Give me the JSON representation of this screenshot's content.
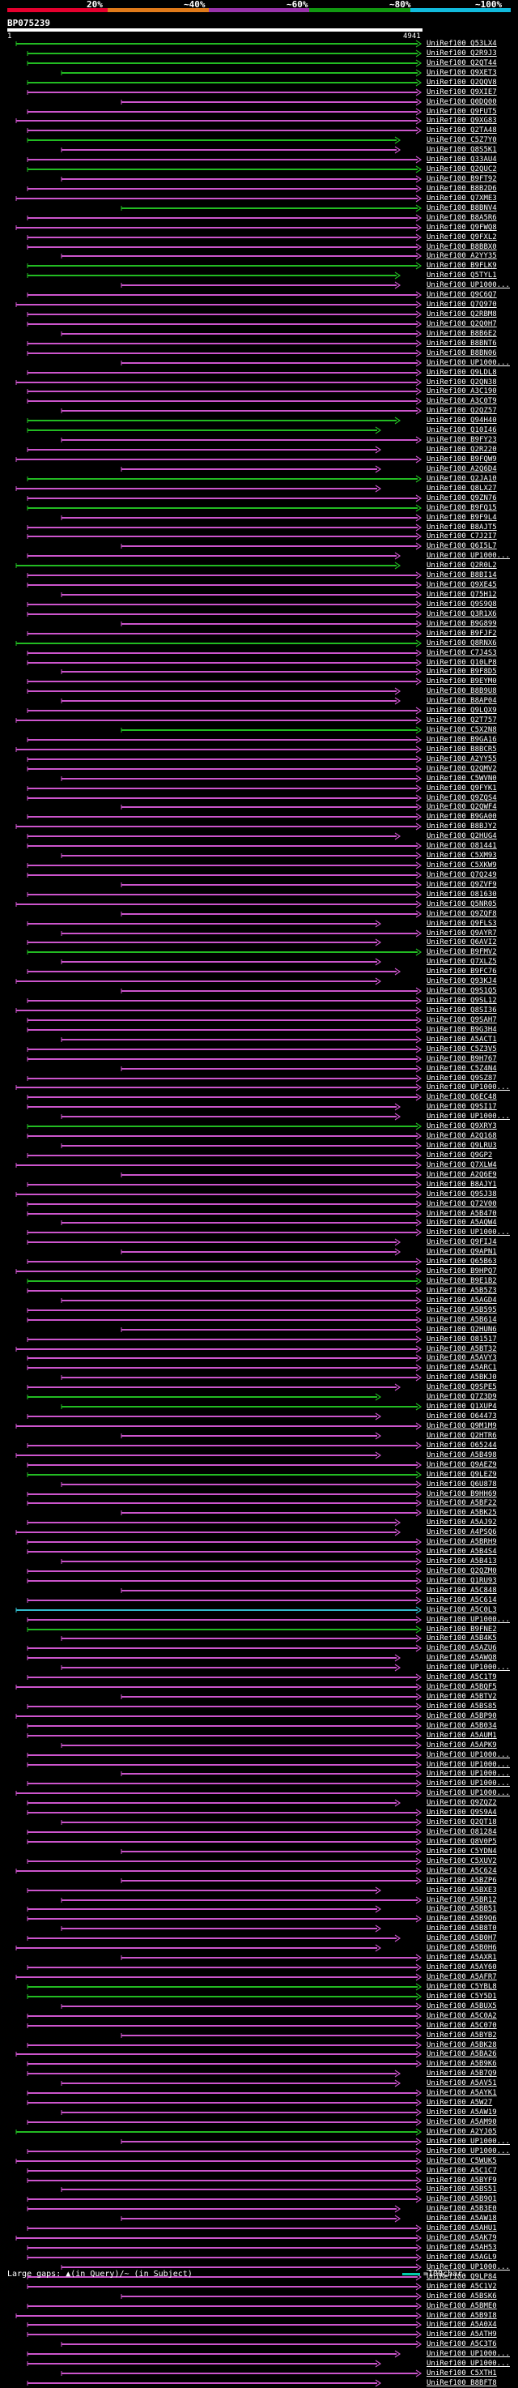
{
  "query_id": "BP075239",
  "query_start": "1",
  "query_end": "4941",
  "legend": [
    {
      "label": "20%",
      "color": "#e6002e"
    },
    {
      "label": "~40%",
      "color": "#e07a1a"
    },
    {
      "label": "~60%",
      "color": "#9933aa"
    },
    {
      "label": "~80%",
      "color": "#119911"
    },
    {
      "label": "~100%",
      "color": "#11bbdd"
    }
  ],
  "footer": {
    "gaps_text": "Large gaps: ▲(in Query)/~ (in Subject)",
    "scale_text": "=100char."
  },
  "colors": {
    "magenta": "#cc55cc",
    "green": "#22bb22",
    "cyan": "#33bbcc",
    "background": "#000000"
  },
  "hits": [
    {
      "id": "UniRef100_Q53LX4",
      "c": "green"
    },
    {
      "id": "UniRef100_Q2R9J3",
      "c": "green"
    },
    {
      "id": "UniRef100_Q2QT44",
      "c": "green"
    },
    {
      "id": "UniRef100_Q9XET3",
      "c": "green"
    },
    {
      "id": "UniRef100_Q2QQV8",
      "c": "green"
    },
    {
      "id": "UniRef100_Q9XIE7",
      "c": "magenta"
    },
    {
      "id": "UniRef100_Q0DQ00",
      "c": "magenta"
    },
    {
      "id": "UniRef100_Q9FUT5",
      "c": "magenta"
    },
    {
      "id": "UniRef100_Q9XG83",
      "c": "magenta"
    },
    {
      "id": "UniRef100_Q2TA48",
      "c": "magenta"
    },
    {
      "id": "UniRef100_C5Z7Y0",
      "c": "green"
    },
    {
      "id": "UniRef100_Q8S5K1",
      "c": "magenta"
    },
    {
      "id": "UniRef100_Q33AU4",
      "c": "magenta"
    },
    {
      "id": "UniRef100_Q2QUC2",
      "c": "green"
    },
    {
      "id": "UniRef100_B9FT92",
      "c": "magenta"
    },
    {
      "id": "UniRef100_B8B2D6",
      "c": "magenta"
    },
    {
      "id": "UniRef100_Q7XME3",
      "c": "magenta"
    },
    {
      "id": "UniRef100_B8BNV4",
      "c": "green"
    },
    {
      "id": "UniRef100_B8A5R6",
      "c": "magenta"
    },
    {
      "id": "UniRef100_Q9FWQ8",
      "c": "magenta"
    },
    {
      "id": "UniRef100_Q9FXL2",
      "c": "magenta"
    },
    {
      "id": "UniRef100_B8BBX0",
      "c": "magenta"
    },
    {
      "id": "UniRef100_A2YY35",
      "c": "magenta"
    },
    {
      "id": "UniRef100_B9FLK9",
      "c": "green"
    },
    {
      "id": "UniRef100_Q5TYL1",
      "c": "green"
    },
    {
      "id": "UniRef100_UP1000...",
      "c": "magenta"
    },
    {
      "id": "UniRef100_Q9C6Q7",
      "c": "magenta"
    },
    {
      "id": "UniRef100_Q7Q970",
      "c": "magenta"
    },
    {
      "id": "UniRef100_Q2RBM8",
      "c": "magenta"
    },
    {
      "id": "UniRef100_Q2Q0H7",
      "c": "magenta"
    },
    {
      "id": "UniRef100_B8B6E2",
      "c": "magenta"
    },
    {
      "id": "UniRef100_B8BNT6",
      "c": "magenta"
    },
    {
      "id": "UniRef100_B8BN06",
      "c": "magenta"
    },
    {
      "id": "UniRef100_UP1000...",
      "c": "magenta"
    },
    {
      "id": "UniRef100_Q9LDL8",
      "c": "magenta"
    },
    {
      "id": "UniRef100_Q2QN38",
      "c": "magenta"
    },
    {
      "id": "UniRef100_A3C190",
      "c": "magenta"
    },
    {
      "id": "UniRef100_A3C0T9",
      "c": "magenta"
    },
    {
      "id": "UniRef100_Q2QZ57",
      "c": "magenta"
    },
    {
      "id": "UniRef100_Q94H40",
      "c": "green"
    },
    {
      "id": "UniRef100_Q10I46",
      "c": "green"
    },
    {
      "id": "UniRef100_B9FY23",
      "c": "magenta"
    },
    {
      "id": "UniRef100_Q2R220",
      "c": "magenta"
    },
    {
      "id": "UniRef100_B9FQW9",
      "c": "magenta"
    },
    {
      "id": "UniRef100_A2Q6D4",
      "c": "magenta"
    },
    {
      "id": "UniRef100_Q2JA10",
      "c": "green"
    },
    {
      "id": "UniRef100_Q8LX27",
      "c": "magenta"
    },
    {
      "id": "UniRef100_Q9ZN76",
      "c": "magenta"
    },
    {
      "id": "UniRef100_B9FQ15",
      "c": "green"
    },
    {
      "id": "UniRef100_B9F9L4",
      "c": "magenta"
    },
    {
      "id": "UniRef100_B8AJT5",
      "c": "magenta"
    },
    {
      "id": "UniRef100_C7J2I7",
      "c": "magenta"
    },
    {
      "id": "UniRef100_Q6I5L7",
      "c": "magenta"
    },
    {
      "id": "UniRef100_UP1000...",
      "c": "magenta"
    },
    {
      "id": "UniRef100_Q2R0L2",
      "c": "green"
    },
    {
      "id": "UniRef100_B8BI14",
      "c": "magenta"
    },
    {
      "id": "UniRef100_Q9XE45",
      "c": "magenta"
    },
    {
      "id": "UniRef100_Q75H12",
      "c": "magenta"
    },
    {
      "id": "UniRef100_Q9S9Q8",
      "c": "magenta"
    },
    {
      "id": "UniRef100_Q3R1X6",
      "c": "magenta"
    },
    {
      "id": "UniRef100_B9G899",
      "c": "magenta"
    },
    {
      "id": "UniRef100_B9FJF2",
      "c": "magenta"
    },
    {
      "id": "UniRef100_Q8RNX6",
      "c": "green"
    },
    {
      "id": "UniRef100_C7J4S3",
      "c": "magenta"
    },
    {
      "id": "UniRef100_Q10LP8",
      "c": "magenta"
    },
    {
      "id": "UniRef100_B9F8D5",
      "c": "magenta"
    },
    {
      "id": "UniRef100_B9EYM0",
      "c": "magenta"
    },
    {
      "id": "UniRef100_B8B9U8",
      "c": "magenta"
    },
    {
      "id": "UniRef100_B8AP04",
      "c": "magenta"
    },
    {
      "id": "UniRef100_Q9LQX9",
      "c": "magenta"
    },
    {
      "id": "UniRef100_Q2T757",
      "c": "magenta"
    },
    {
      "id": "UniRef100_C5X2N8",
      "c": "green"
    },
    {
      "id": "UniRef100_B9GA16",
      "c": "magenta"
    },
    {
      "id": "UniRef100_B8BCR5",
      "c": "magenta"
    },
    {
      "id": "UniRef100_A2YY55",
      "c": "magenta"
    },
    {
      "id": "UniRef100_Q2QMV2",
      "c": "magenta"
    },
    {
      "id": "UniRef100_C5WVN0",
      "c": "magenta"
    },
    {
      "id": "UniRef100_Q9FYK1",
      "c": "magenta"
    },
    {
      "id": "UniRef100_Q9ZQS4",
      "c": "magenta"
    },
    {
      "id": "UniRef100_Q2QWF4",
      "c": "magenta"
    },
    {
      "id": "UniRef100_B9GA00",
      "c": "magenta"
    },
    {
      "id": "UniRef100_B8BJY2",
      "c": "magenta"
    },
    {
      "id": "UniRef100_Q2HUG4",
      "c": "magenta"
    },
    {
      "id": "UniRef100_O81441",
      "c": "magenta"
    },
    {
      "id": "UniRef100_C5XM93",
      "c": "magenta"
    },
    {
      "id": "UniRef100_C5XKW9",
      "c": "magenta"
    },
    {
      "id": "UniRef100_Q7Q249",
      "c": "magenta"
    },
    {
      "id": "UniRef100_Q9ZVF9",
      "c": "magenta"
    },
    {
      "id": "UniRef100_O81630",
      "c": "magenta"
    },
    {
      "id": "UniRef100_Q5NR05",
      "c": "magenta"
    },
    {
      "id": "UniRef100_Q9ZQF8",
      "c": "magenta"
    },
    {
      "id": "UniRef100_Q9FLS3",
      "c": "magenta"
    },
    {
      "id": "UniRef100_Q9AYR7",
      "c": "magenta"
    },
    {
      "id": "UniRef100_Q6AVI2",
      "c": "magenta"
    },
    {
      "id": "UniRef100_B9FMV2",
      "c": "green"
    },
    {
      "id": "UniRef100_Q7XLZ5",
      "c": "magenta"
    },
    {
      "id": "UniRef100_B9FC76",
      "c": "magenta"
    },
    {
      "id": "UniRef100_Q93KJ4",
      "c": "magenta"
    },
    {
      "id": "UniRef100_Q9S1Q5",
      "c": "magenta"
    },
    {
      "id": "UniRef100_Q9SL12",
      "c": "magenta"
    },
    {
      "id": "UniRef100_Q8SI36",
      "c": "magenta"
    },
    {
      "id": "UniRef100_Q9SAH7",
      "c": "magenta"
    },
    {
      "id": "UniRef100_B9G3H4",
      "c": "magenta"
    },
    {
      "id": "UniRef100_A5ACT1",
      "c": "magenta"
    },
    {
      "id": "UniRef100_C5Z3V5",
      "c": "magenta"
    },
    {
      "id": "UniRef100_B9H767",
      "c": "magenta"
    },
    {
      "id": "UniRef100_C5Z4N4",
      "c": "magenta"
    },
    {
      "id": "UniRef100_Q9SZ87",
      "c": "magenta"
    },
    {
      "id": "UniRef100_UP1000...",
      "c": "magenta"
    },
    {
      "id": "UniRef100_Q6EC48",
      "c": "magenta"
    },
    {
      "id": "UniRef100_Q9SI17",
      "c": "magenta"
    },
    {
      "id": "UniRef100_UP1000...",
      "c": "magenta"
    },
    {
      "id": "UniRef100_Q9XRY3",
      "c": "green"
    },
    {
      "id": "UniRef100_A2Q168",
      "c": "magenta"
    },
    {
      "id": "UniRef100_Q9LRU3",
      "c": "magenta"
    },
    {
      "id": "UniRef100_Q9GP2",
      "c": "magenta"
    },
    {
      "id": "UniRef100_Q7XLW4",
      "c": "magenta"
    },
    {
      "id": "UniRef100_A2Q6E9",
      "c": "magenta"
    },
    {
      "id": "UniRef100_B8AJY1",
      "c": "magenta"
    },
    {
      "id": "UniRef100_Q9SJ38",
      "c": "magenta"
    },
    {
      "id": "UniRef100_Q72V00",
      "c": "magenta"
    },
    {
      "id": "UniRef100_A5B470",
      "c": "magenta"
    },
    {
      "id": "UniRef100_A5AQW4",
      "c": "magenta"
    },
    {
      "id": "UniRef100_UP1000...",
      "c": "magenta"
    },
    {
      "id": "UniRef100_Q9FIJ4",
      "c": "magenta"
    },
    {
      "id": "UniRef100_Q9APN1",
      "c": "magenta"
    },
    {
      "id": "UniRef100_Q65B63",
      "c": "magenta"
    },
    {
      "id": "UniRef100_B9HPQ7",
      "c": "magenta"
    },
    {
      "id": "UniRef100_B9E1B2",
      "c": "green"
    },
    {
      "id": "UniRef100_A5B5Z3",
      "c": "magenta"
    },
    {
      "id": "UniRef100_A5AGD4",
      "c": "magenta"
    },
    {
      "id": "UniRef100_A5B595",
      "c": "magenta"
    },
    {
      "id": "UniRef100_A5B614",
      "c": "magenta"
    },
    {
      "id": "UniRef100_Q2HUN6",
      "c": "magenta"
    },
    {
      "id": "UniRef100_O81517",
      "c": "magenta"
    },
    {
      "id": "UniRef100_A5BT32",
      "c": "magenta"
    },
    {
      "id": "UniRef100_A5AVY3",
      "c": "magenta"
    },
    {
      "id": "UniRef100_A5ARC1",
      "c": "magenta"
    },
    {
      "id": "UniRef100_A5BKJ0",
      "c": "magenta"
    },
    {
      "id": "UniRef100_Q9SPE5",
      "c": "magenta"
    },
    {
      "id": "UniRef100_Q7Z3D9",
      "c": "green"
    },
    {
      "id": "UniRef100_Q1XUP4",
      "c": "green"
    },
    {
      "id": "UniRef100_O64473",
      "c": "magenta"
    },
    {
      "id": "UniRef100_Q9M1M9",
      "c": "magenta"
    },
    {
      "id": "UniRef100_Q2HTR6",
      "c": "magenta"
    },
    {
      "id": "UniRef100_O65244",
      "c": "magenta"
    },
    {
      "id": "UniRef100_A5B498",
      "c": "magenta"
    },
    {
      "id": "UniRef100_Q9AEZ9",
      "c": "magenta"
    },
    {
      "id": "UniRef100_Q9LEZ9",
      "c": "green"
    },
    {
      "id": "UniRef100_Q6U878",
      "c": "magenta"
    },
    {
      "id": "UniRef100_B9HH69",
      "c": "magenta"
    },
    {
      "id": "UniRef100_A5BF22",
      "c": "magenta"
    },
    {
      "id": "UniRef100_A5BK25",
      "c": "magenta"
    },
    {
      "id": "UniRef100_A5AJ92",
      "c": "magenta"
    },
    {
      "id": "UniRef100_A4PSQ6",
      "c": "magenta"
    },
    {
      "id": "UniRef100_A5BRH9",
      "c": "magenta"
    },
    {
      "id": "UniRef100_A5B4S4",
      "c": "magenta"
    },
    {
      "id": "UniRef100_A5B413",
      "c": "magenta"
    },
    {
      "id": "UniRef100_Q2QZM0",
      "c": "magenta"
    },
    {
      "id": "UniRef100_Q1RU93",
      "c": "magenta"
    },
    {
      "id": "UniRef100_A5C848",
      "c": "magenta"
    },
    {
      "id": "UniRef100_A5C614",
      "c": "magenta"
    },
    {
      "id": "UniRef100_A5C0L3",
      "c": "cyan"
    },
    {
      "id": "UniRef100_UP1000...",
      "c": "magenta"
    },
    {
      "id": "UniRef100_B9FNE2",
      "c": "green"
    },
    {
      "id": "UniRef100_A5B4K5",
      "c": "magenta"
    },
    {
      "id": "UniRef100_A5AZU6",
      "c": "magenta"
    },
    {
      "id": "UniRef100_A5AWQ8",
      "c": "magenta"
    },
    {
      "id": "UniRef100_UP1000...",
      "c": "magenta"
    },
    {
      "id": "UniRef100_A5C1T9",
      "c": "magenta"
    },
    {
      "id": "UniRef100_A5BQF5",
      "c": "magenta"
    },
    {
      "id": "UniRef100_A5BTV2",
      "c": "magenta"
    },
    {
      "id": "UniRef100_A5BS85",
      "c": "magenta"
    },
    {
      "id": "UniRef100_A5BP90",
      "c": "magenta"
    },
    {
      "id": "UniRef100_A5B034",
      "c": "magenta"
    },
    {
      "id": "UniRef100_A5AUM1",
      "c": "magenta"
    },
    {
      "id": "UniRef100_A5APK9",
      "c": "magenta"
    },
    {
      "id": "UniRef100_UP1000...",
      "c": "magenta"
    },
    {
      "id": "UniRef100_UP1000...",
      "c": "magenta"
    },
    {
      "id": "UniRef100_UP1000...",
      "c": "magenta"
    },
    {
      "id": "UniRef100_UP1000...",
      "c": "magenta"
    },
    {
      "id": "UniRef100_UP1000...",
      "c": "magenta"
    },
    {
      "id": "UniRef100_Q9ZQZ2",
      "c": "magenta"
    },
    {
      "id": "UniRef100_Q9S9A4",
      "c": "magenta"
    },
    {
      "id": "UniRef100_Q2QT18",
      "c": "magenta"
    },
    {
      "id": "UniRef100_O81284",
      "c": "magenta"
    },
    {
      "id": "UniRef100_Q8V0P5",
      "c": "magenta"
    },
    {
      "id": "UniRef100_C5YDN4",
      "c": "magenta"
    },
    {
      "id": "UniRef100_C5XUV2",
      "c": "magenta"
    },
    {
      "id": "UniRef100_A5C624",
      "c": "magenta"
    },
    {
      "id": "UniRef100_A5BZP6",
      "c": "magenta"
    },
    {
      "id": "UniRef100_A5BXE3",
      "c": "magenta"
    },
    {
      "id": "UniRef100_A5BR12",
      "c": "magenta"
    },
    {
      "id": "UniRef100_A5BB51",
      "c": "magenta"
    },
    {
      "id": "UniRef100_A5B9Q6",
      "c": "magenta"
    },
    {
      "id": "UniRef100_A5B8T0",
      "c": "magenta"
    },
    {
      "id": "UniRef100_A5B0H7",
      "c": "magenta"
    },
    {
      "id": "UniRef100_A5B0H6",
      "c": "magenta"
    },
    {
      "id": "UniRef100_A5AXR1",
      "c": "magenta"
    },
    {
      "id": "UniRef100_A5AY60",
      "c": "magenta"
    },
    {
      "id": "UniRef100_A5AFR7",
      "c": "magenta"
    },
    {
      "id": "UniRef100_C5YBL8",
      "c": "green"
    },
    {
      "id": "UniRef100_C5Y5D1",
      "c": "green"
    },
    {
      "id": "UniRef100_A5BUX5",
      "c": "magenta"
    },
    {
      "id": "UniRef100_A5C0A2",
      "c": "magenta"
    },
    {
      "id": "UniRef100_A5C070",
      "c": "magenta"
    },
    {
      "id": "UniRef100_A5BYB2",
      "c": "magenta"
    },
    {
      "id": "UniRef100_A5BK28",
      "c": "magenta"
    },
    {
      "id": "UniRef100_A5BA26",
      "c": "magenta"
    },
    {
      "id": "UniRef100_A5B9K6",
      "c": "magenta"
    },
    {
      "id": "UniRef100_A5B7Q9",
      "c": "magenta"
    },
    {
      "id": "UniRef100_A5AV51",
      "c": "magenta"
    },
    {
      "id": "UniRef100_A5AYK1",
      "c": "magenta"
    },
    {
      "id": "UniRef100_A5W27",
      "c": "magenta"
    },
    {
      "id": "UniRef100_A5AW19",
      "c": "magenta"
    },
    {
      "id": "UniRef100_A5AM90",
      "c": "magenta"
    },
    {
      "id": "UniRef100_A2YJ05",
      "c": "green"
    },
    {
      "id": "UniRef100_UP1000...",
      "c": "magenta"
    },
    {
      "id": "UniRef100_UP1000...",
      "c": "magenta"
    },
    {
      "id": "UniRef100_C5WUK5",
      "c": "magenta"
    },
    {
      "id": "UniRef100_A5C1C7",
      "c": "magenta"
    },
    {
      "id": "UniRef100_A5BYF9",
      "c": "magenta"
    },
    {
      "id": "UniRef100_A5BS51",
      "c": "magenta"
    },
    {
      "id": "UniRef100_A5B9O1",
      "c": "magenta"
    },
    {
      "id": "UniRef100_A5B3E0",
      "c": "magenta"
    },
    {
      "id": "UniRef100_A5AW18",
      "c": "magenta"
    },
    {
      "id": "UniRef100_A5AHU1",
      "c": "magenta"
    },
    {
      "id": "UniRef100_A5AK79",
      "c": "magenta"
    },
    {
      "id": "UniRef100_A5AH53",
      "c": "magenta"
    },
    {
      "id": "UniRef100_A5AGL9",
      "c": "magenta"
    },
    {
      "id": "UniRef100_UP1000...",
      "c": "magenta"
    },
    {
      "id": "UniRef100_Q9LP84",
      "c": "magenta"
    },
    {
      "id": "UniRef100_A5C1V2",
      "c": "magenta"
    },
    {
      "id": "UniRef100_A5BSK6",
      "c": "magenta"
    },
    {
      "id": "UniRef100_A5BME0",
      "c": "magenta"
    },
    {
      "id": "UniRef100_A5B9I8",
      "c": "magenta"
    },
    {
      "id": "UniRef100_A5A0X4",
      "c": "magenta"
    },
    {
      "id": "UniRef100_A5ATH9",
      "c": "magenta"
    },
    {
      "id": "UniRef100_A5C3T6",
      "c": "magenta"
    },
    {
      "id": "UniRef100_UP1000...",
      "c": "magenta"
    },
    {
      "id": "UniRef100_UP1000...",
      "c": "magenta"
    },
    {
      "id": "UniRef100_C5XTH1",
      "c": "magenta"
    },
    {
      "id": "UniRef100_B8BFT8",
      "c": "magenta"
    }
  ]
}
